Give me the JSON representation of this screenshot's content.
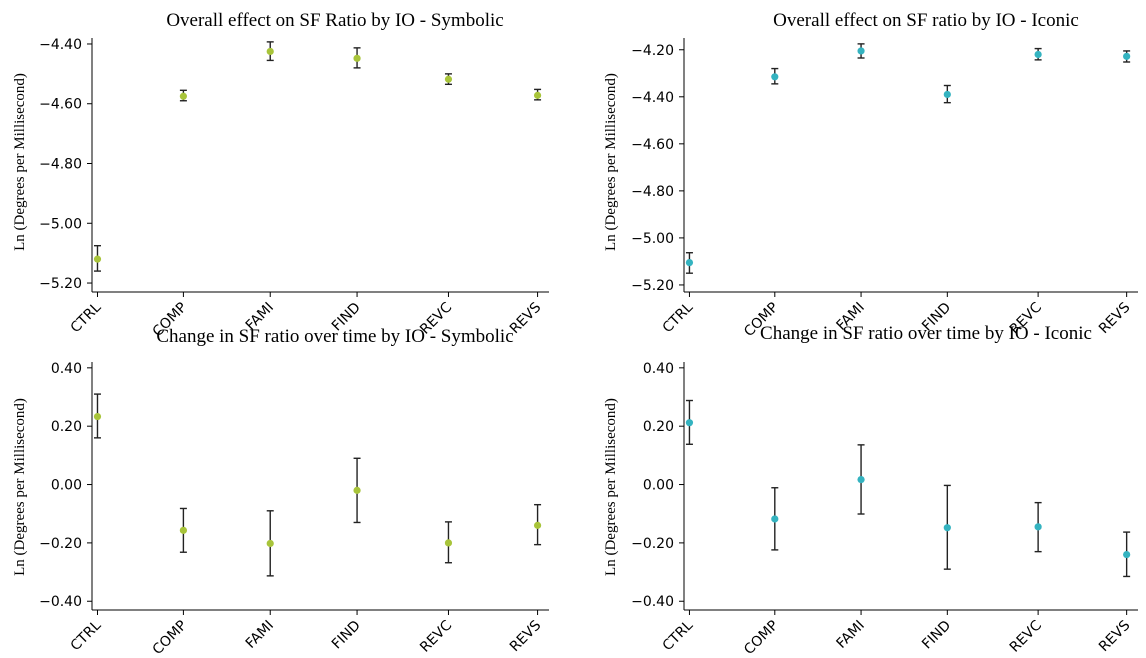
{
  "figure": {
    "point_colors": {
      "symbolic": "#a8c43a",
      "iconic": "#34b3c0"
    }
  },
  "chart_data": [
    {
      "type": "scatter",
      "id": "sym-overall",
      "title": "Overall effect on SF Ratio by IO - Symbolic",
      "xlabel": "",
      "ylabel": "Ln (Degrees per Millisecond)",
      "categories": [
        "CTRL",
        "COMP",
        "FAMI",
        "FIND",
        "REVC",
        "REVS"
      ],
      "values": [
        -5.12,
        -4.575,
        -4.425,
        -4.448,
        -4.518,
        -4.572
      ],
      "err_low": [
        -5.16,
        -4.59,
        -4.455,
        -4.48,
        -4.535,
        -4.587
      ],
      "err_high": [
        -5.075,
        -4.555,
        -4.393,
        -4.413,
        -4.5,
        -4.552
      ],
      "yticks": [
        -4.4,
        -4.6,
        -4.8,
        -5.0,
        -5.2
      ],
      "ytick_labels": [
        "−4.40",
        "−4.60",
        "−4.80",
        "−5.00",
        "−5.20"
      ],
      "ylim": [
        -5.23,
        -4.38
      ],
      "color": "#a8c43a",
      "grid": false,
      "legend": "none"
    },
    {
      "type": "scatter",
      "id": "ico-overall",
      "title": "Overall effect on SF ratio by IO - Iconic",
      "xlabel": "",
      "ylabel": "Ln (Degrees per Millisecond)",
      "categories": [
        "CTRL",
        "COMP",
        "FAMI",
        "FIND",
        "REVC",
        "REVS"
      ],
      "values": [
        -5.105,
        -4.315,
        -4.205,
        -4.39,
        -4.22,
        -4.228
      ],
      "err_low": [
        -5.15,
        -4.345,
        -4.235,
        -4.425,
        -4.243,
        -4.252
      ],
      "err_high": [
        -5.063,
        -4.28,
        -4.175,
        -4.352,
        -4.195,
        -4.205
      ],
      "yticks": [
        -4.2,
        -4.4,
        -4.6,
        -4.8,
        -5.0,
        -5.2
      ],
      "ytick_labels": [
        "−4.20",
        "−4.40",
        "−4.60",
        "−4.80",
        "−5.00",
        "−5.20"
      ],
      "ylim": [
        -5.23,
        -4.15
      ],
      "color": "#34b3c0",
      "grid": false,
      "legend": "none"
    },
    {
      "type": "scatter",
      "id": "sym-change",
      "title": "Change in SF ratio over time by IO - Symbolic",
      "xlabel": "",
      "ylabel": "Ln (Degrees per Millisecond)",
      "categories": [
        "CTRL",
        "COMP",
        "FAMI",
        "FIND",
        "REVC",
        "REVS"
      ],
      "values": [
        0.233,
        -0.157,
        -0.202,
        -0.02,
        -0.2,
        -0.14
      ],
      "err_low": [
        0.16,
        -0.232,
        -0.313,
        -0.13,
        -0.268,
        -0.206
      ],
      "err_high": [
        0.31,
        -0.082,
        -0.09,
        0.09,
        -0.128,
        -0.069
      ],
      "yticks": [
        0.4,
        0.2,
        0.0,
        -0.2,
        -0.4
      ],
      "ytick_labels": [
        "0.40",
        "0.20",
        "0.00",
        "−0.20",
        "−0.40"
      ],
      "ylim": [
        -0.43,
        0.42
      ],
      "color": "#a8c43a",
      "grid": false,
      "legend": "none"
    },
    {
      "type": "scatter",
      "id": "ico-change",
      "title": "Change in SF ratio over time by IO - Iconic",
      "xlabel": "",
      "ylabel": "Ln (Degrees per Millisecond)",
      "categories": [
        "CTRL",
        "COMP",
        "FAMI",
        "FIND",
        "REVC",
        "REVS"
      ],
      "values": [
        0.212,
        -0.118,
        0.017,
        -0.148,
        -0.145,
        -0.24
      ],
      "err_low": [
        0.138,
        -0.224,
        -0.101,
        -0.29,
        -0.23,
        -0.315
      ],
      "err_high": [
        0.288,
        -0.011,
        0.136,
        -0.003,
        -0.062,
        -0.163
      ],
      "yticks": [
        0.4,
        0.2,
        0.0,
        -0.2,
        -0.4
      ],
      "ytick_labels": [
        "0.40",
        "0.20",
        "0.00",
        "−0.20",
        "−0.40"
      ],
      "ylim": [
        -0.43,
        0.42
      ],
      "color": "#34b3c0",
      "grid": false,
      "legend": "none"
    }
  ]
}
